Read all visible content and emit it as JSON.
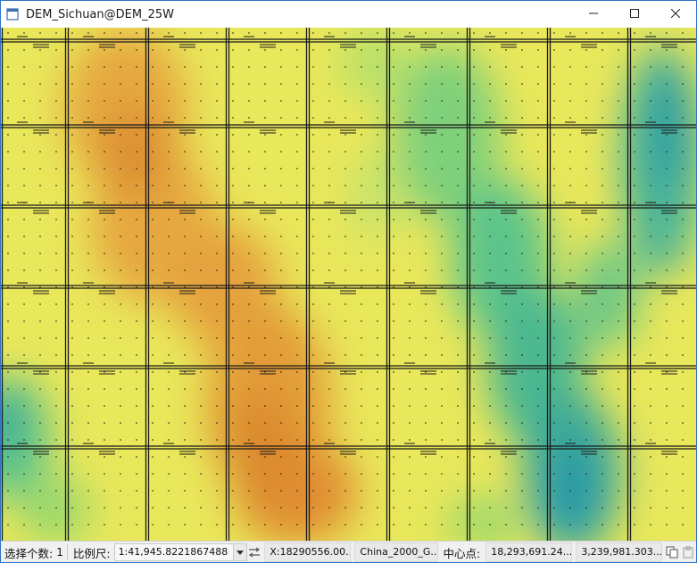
{
  "window": {
    "title": "DEM_Sichuan@DEM_25W",
    "icon": "map-window-icon",
    "controls": [
      "minimize-icon",
      "maximize-icon",
      "close-icon"
    ]
  },
  "map": {
    "layer": "DEM_Sichuan@DEM_25W",
    "grid_color": "#1a1a1a",
    "palette": {
      "low": "#2a9aa8",
      "low_mid": "#4fc08a",
      "mid": "#a6dd6a",
      "high_mid": "#ecef5c",
      "high": "#e7b446",
      "peak": "#dd8a2c"
    }
  },
  "statusbar": {
    "selection_label": "选择个数:",
    "selection_count": "1",
    "scale_label": "比例尺:",
    "scale_value": "1:41,945.8221867488",
    "swap_icon": "swap-arrows-icon",
    "x_coord": "X:18290556.00...",
    "coord_system": "China_2000_G...",
    "center_label": "中心点:",
    "center_x": "18,293,691.24...",
    "center_y": "3,239,981.303...",
    "copy_icon": "copy-icon",
    "paste_icon": "paste-icon"
  }
}
